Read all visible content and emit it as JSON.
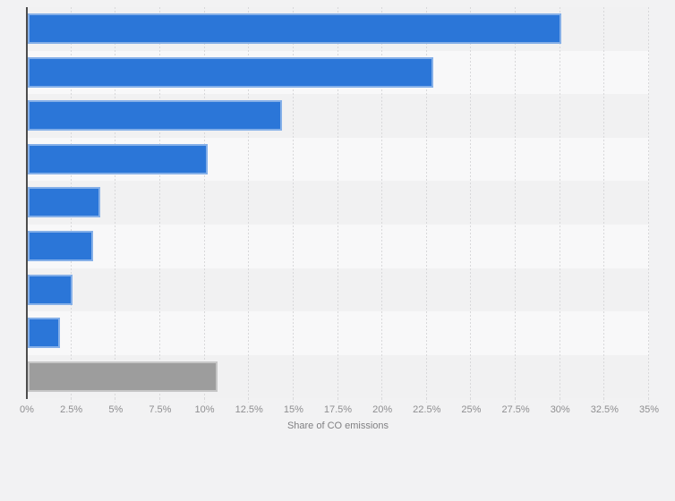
{
  "page": {
    "background_color": "#f2f2f3"
  },
  "chart_data": {
    "type": "bar",
    "orientation": "horizontal",
    "title": "",
    "xlabel": "Share of CO emissions",
    "ylabel": "",
    "xlim": [
      0,
      35
    ],
    "x_tick_step": 2.5,
    "x_tick_labels": [
      "0%",
      "2.5%",
      "5%",
      "7.5%",
      "10%",
      "12.5%",
      "15%",
      "17.5%",
      "20%",
      "22.5%",
      "25%",
      "27.5%",
      "30%",
      "32.5%",
      "35%"
    ],
    "unit": "%",
    "grid": "vertical-dashed",
    "legend": "none",
    "category_labels_visible": false,
    "series": [
      {
        "name": "share-of-emissions",
        "values": [
          30,
          22.8,
          14.3,
          10.1,
          4.1,
          3.7,
          2.5,
          1.8,
          10.7
        ]
      }
    ],
    "bar_colors": [
      "#2b76d8",
      "#2b76d8",
      "#2b76d8",
      "#2b76d8",
      "#2b76d8",
      "#2b76d8",
      "#2b76d8",
      "#2b76d8",
      "#9d9d9d"
    ],
    "colors": {
      "band_dark": "#f1f1f2",
      "band_light": "#f8f8f9",
      "gridline": "#d8d8da",
      "axis_line": "#4d4d4d",
      "tick_text": "#8e8e90",
      "axis_title_text": "#808083"
    }
  }
}
